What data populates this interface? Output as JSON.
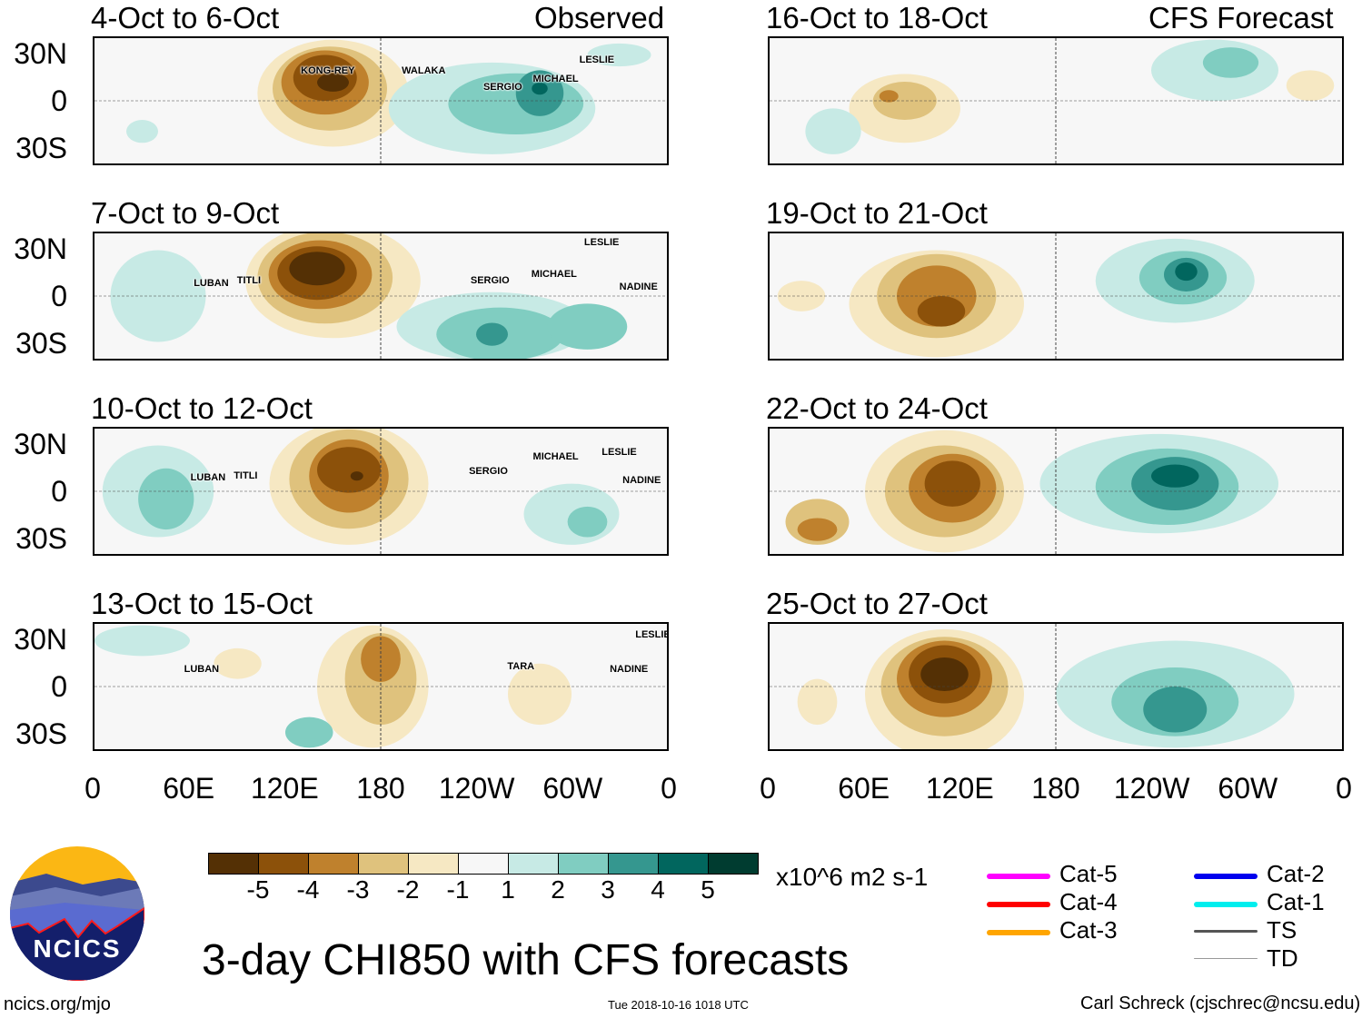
{
  "headers": {
    "observed": "Observed",
    "forecast": "CFS Forecast"
  },
  "y_ticks": [
    "30N",
    "0",
    "30S"
  ],
  "x_ticks": [
    "0",
    "60E",
    "120E",
    "180",
    "120W",
    "60W",
    "0"
  ],
  "colors": {
    "-5": "#543005",
    "-4": "#8c510a",
    "-3": "#bf812d",
    "-2": "#dfc27d",
    "-1": "#f6e8c3",
    "0": "#f7f7f7",
    "1": "#c7eae5",
    "2": "#80cdc1",
    "3": "#35978f",
    "4": "#01665e",
    "5": "#003c30"
  },
  "colorbar": {
    "levels": [
      "-5",
      "-4",
      "-3",
      "-2",
      "-1",
      "0",
      "1",
      "2",
      "3",
      "4",
      "5"
    ],
    "labels": [
      "-5",
      "-4",
      "-3",
      "-2",
      "-1",
      "1",
      "2",
      "3",
      "4",
      "5"
    ],
    "units": "x10^6 m2 s-1"
  },
  "title": "3-day CHI850 with CFS forecasts",
  "footer": {
    "site": "ncics.org/mjo",
    "timestamp": "Tue 2018-10-16 1018 UTC",
    "author": "Carl Schreck (cjschrec@ncsu.edu)",
    "logo_text": "NCICS"
  },
  "legend": [
    {
      "label": "Cat-5",
      "color": "#ff00ff"
    },
    {
      "label": "Cat-4",
      "color": "#ff0000"
    },
    {
      "label": "Cat-3",
      "color": "#ffa500"
    },
    {
      "label": "Cat-2",
      "color": "#0000ee"
    },
    {
      "label": "Cat-1",
      "color": "#00eeee"
    },
    {
      "label": "TS",
      "color": "#555555"
    },
    {
      "label": "TD",
      "color": "#999999"
    }
  ],
  "panels": [
    {
      "title": "4-Oct to 6-Oct",
      "col": 0,
      "row": 0,
      "blobs": [
        [
          150,
          5,
          95,
          70,
          -1
        ],
        [
          148,
          8,
          72,
          55,
          -2
        ],
        [
          145,
          12,
          55,
          42,
          -3
        ],
        [
          145,
          15,
          40,
          30,
          -4
        ],
        [
          150,
          12,
          20,
          12,
          -5
        ],
        [
          30,
          -20,
          20,
          15,
          1
        ],
        [
          250,
          -5,
          130,
          60,
          1
        ],
        [
          265,
          -2,
          85,
          40,
          2
        ],
        [
          280,
          5,
          30,
          30,
          3
        ],
        [
          280,
          8,
          10,
          8,
          4
        ],
        [
          330,
          30,
          40,
          15,
          1
        ]
      ],
      "storms": [
        {
          "name": "KONG-REY",
          "lon": 129,
          "lat": 20
        },
        {
          "name": "WALAKA",
          "lon": 192,
          "lat": 20
        },
        {
          "name": "SERGIO",
          "lon": 243,
          "lat": 10
        },
        {
          "name": "MICHAEL",
          "lon": 274,
          "lat": 15
        },
        {
          "name": "LESLIE",
          "lon": 303,
          "lat": 27
        }
      ]
    },
    {
      "title": "7-Oct to 9-Oct",
      "col": 0,
      "row": 1,
      "blobs": [
        [
          150,
          10,
          110,
          75,
          -1
        ],
        [
          145,
          12,
          85,
          60,
          -2
        ],
        [
          142,
          14,
          65,
          45,
          -3
        ],
        [
          140,
          15,
          50,
          35,
          -4
        ],
        [
          140,
          18,
          35,
          22,
          -5
        ],
        [
          40,
          0,
          60,
          60,
          1
        ],
        [
          250,
          -20,
          120,
          45,
          1
        ],
        [
          255,
          -25,
          80,
          35,
          2
        ],
        [
          250,
          -25,
          20,
          15,
          3
        ],
        [
          310,
          -20,
          50,
          30,
          2
        ]
      ],
      "storms": [
        {
          "name": "LUBAN",
          "lon": 62,
          "lat": 9
        },
        {
          "name": "TITLI",
          "lon": 89,
          "lat": 11
        },
        {
          "name": "SERGIO",
          "lon": 235,
          "lat": 11
        },
        {
          "name": "MICHAEL",
          "lon": 273,
          "lat": 15
        },
        {
          "name": "LESLIE",
          "lon": 306,
          "lat": 35
        },
        {
          "name": "NADINE",
          "lon": 328,
          "lat": 7
        }
      ]
    },
    {
      "title": "10-Oct to 12-Oct",
      "col": 0,
      "row": 2,
      "blobs": [
        [
          160,
          5,
          100,
          80,
          -1
        ],
        [
          160,
          8,
          75,
          65,
          -2
        ],
        [
          160,
          10,
          50,
          48,
          -3
        ],
        [
          160,
          14,
          40,
          30,
          -4
        ],
        [
          165,
          10,
          8,
          6,
          -5
        ],
        [
          40,
          0,
          70,
          60,
          1
        ],
        [
          45,
          -5,
          35,
          40,
          2
        ],
        [
          300,
          -15,
          60,
          40,
          1
        ],
        [
          310,
          -20,
          25,
          20,
          2
        ]
      ],
      "storms": [
        {
          "name": "LUBAN",
          "lon": 60,
          "lat": 10
        },
        {
          "name": "TITLI",
          "lon": 87,
          "lat": 11
        },
        {
          "name": "SERGIO",
          "lon": 234,
          "lat": 14
        },
        {
          "name": "MICHAEL",
          "lon": 274,
          "lat": 23
        },
        {
          "name": "LESLIE",
          "lon": 317,
          "lat": 26
        },
        {
          "name": "NADINE",
          "lon": 330,
          "lat": 8
        }
      ]
    },
    {
      "title": "13-Oct to 15-Oct",
      "col": 0,
      "row": 3,
      "blobs": [
        [
          175,
          0,
          70,
          80,
          -1
        ],
        [
          180,
          5,
          45,
          60,
          -2
        ],
        [
          180,
          18,
          25,
          30,
          -3
        ],
        [
          30,
          30,
          60,
          20,
          1
        ],
        [
          135,
          -30,
          30,
          20,
          2
        ],
        [
          90,
          15,
          30,
          20,
          -1
        ],
        [
          280,
          -5,
          40,
          40,
          -1
        ]
      ],
      "storms": [
        {
          "name": "LUBAN",
          "lon": 56,
          "lat": 12
        },
        {
          "name": "TARA",
          "lon": 258,
          "lat": 14
        },
        {
          "name": "LESLIE",
          "lon": 338,
          "lat": 34
        },
        {
          "name": "NADINE",
          "lon": 322,
          "lat": 12
        }
      ]
    },
    {
      "title": "16-Oct to 18-Oct",
      "col": 1,
      "row": 0,
      "blobs": [
        [
          85,
          -5,
          70,
          45,
          -1
        ],
        [
          85,
          0,
          40,
          25,
          -2
        ],
        [
          75,
          3,
          12,
          8,
          -3
        ],
        [
          280,
          20,
          80,
          40,
          1
        ],
        [
          290,
          25,
          35,
          20,
          2
        ],
        [
          40,
          -20,
          35,
          30,
          1
        ],
        [
          340,
          10,
          30,
          20,
          -1
        ]
      ],
      "storms": []
    },
    {
      "title": "19-Oct to 21-Oct",
      "col": 1,
      "row": 1,
      "blobs": [
        [
          105,
          -5,
          110,
          70,
          -1
        ],
        [
          105,
          0,
          75,
          55,
          -2
        ],
        [
          105,
          0,
          50,
          40,
          -3
        ],
        [
          108,
          -10,
          30,
          20,
          -4
        ],
        [
          255,
          10,
          100,
          55,
          1
        ],
        [
          260,
          12,
          55,
          35,
          2
        ],
        [
          262,
          14,
          28,
          22,
          3
        ],
        [
          262,
          16,
          14,
          12,
          4
        ],
        [
          20,
          0,
          30,
          20,
          -1
        ]
      ],
      "storms": []
    },
    {
      "title": "22-Oct to 24-Oct",
      "col": 1,
      "row": 2,
      "blobs": [
        [
          110,
          0,
          100,
          80,
          -1
        ],
        [
          110,
          0,
          75,
          60,
          -2
        ],
        [
          115,
          2,
          55,
          45,
          -3
        ],
        [
          115,
          5,
          35,
          30,
          -4
        ],
        [
          30,
          -20,
          40,
          30,
          -2
        ],
        [
          30,
          -25,
          25,
          15,
          -3
        ],
        [
          245,
          5,
          150,
          65,
          1
        ],
        [
          250,
          3,
          90,
          50,
          2
        ],
        [
          255,
          5,
          55,
          35,
          3
        ],
        [
          255,
          10,
          30,
          15,
          4
        ]
      ],
      "storms": []
    },
    {
      "title": "25-Oct to 27-Oct",
      "col": 1,
      "row": 3,
      "blobs": [
        [
          110,
          -5,
          100,
          85,
          -1
        ],
        [
          110,
          0,
          80,
          65,
          -2
        ],
        [
          110,
          5,
          60,
          50,
          -3
        ],
        [
          110,
          8,
          45,
          38,
          -4
        ],
        [
          110,
          8,
          30,
          22,
          -5
        ],
        [
          255,
          -5,
          150,
          70,
          1
        ],
        [
          255,
          -10,
          80,
          45,
          2
        ],
        [
          255,
          -15,
          40,
          30,
          3
        ],
        [
          30,
          -10,
          25,
          30,
          -1
        ]
      ],
      "storms": []
    }
  ]
}
